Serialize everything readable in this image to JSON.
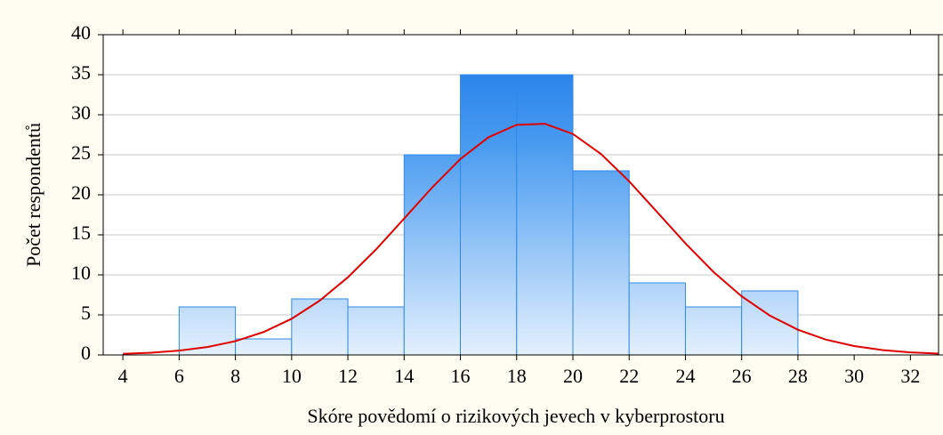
{
  "chart_data": {
    "type": "histogram",
    "xlabel": "Skóre povědomí o rizikových jevech v kyberprostoru",
    "ylabel": "Počet respondentů",
    "bins": [
      6,
      8,
      10,
      12,
      14,
      16,
      18,
      20,
      22,
      24,
      26,
      28
    ],
    "counts": [
      6,
      2,
      7,
      6,
      25,
      35,
      35,
      23,
      9,
      6,
      8
    ],
    "color": "#2f8ae8",
    "curve": {
      "color": "#e00000",
      "x": [
        4,
        5,
        6,
        7,
        8,
        9,
        10,
        11,
        12,
        13,
        14,
        15,
        16,
        17,
        18,
        19,
        20,
        21,
        22,
        23,
        24,
        25,
        26,
        27,
        28,
        29,
        30,
        31,
        32,
        33
      ],
      "y": [
        0.14,
        0.28,
        0.54,
        0.99,
        1.72,
        2.86,
        4.52,
        6.79,
        9.7,
        13.18,
        17.03,
        20.93,
        24.47,
        27.19,
        28.74,
        28.88,
        27.6,
        25.09,
        21.69,
        17.83,
        13.94,
        10.36,
        7.32,
        4.92,
        3.15,
        1.91,
        1.11,
        0.61,
        0.32,
        0.16
      ]
    },
    "xlim": [
      3.3,
      33
    ],
    "ylim": [
      0,
      40
    ],
    "xticks": [
      4,
      6,
      8,
      10,
      12,
      14,
      16,
      18,
      20,
      22,
      24,
      26,
      28,
      30,
      32
    ],
    "yticks": [
      0,
      5,
      10,
      15,
      20,
      25,
      30,
      35,
      40
    ],
    "grid": true
  }
}
